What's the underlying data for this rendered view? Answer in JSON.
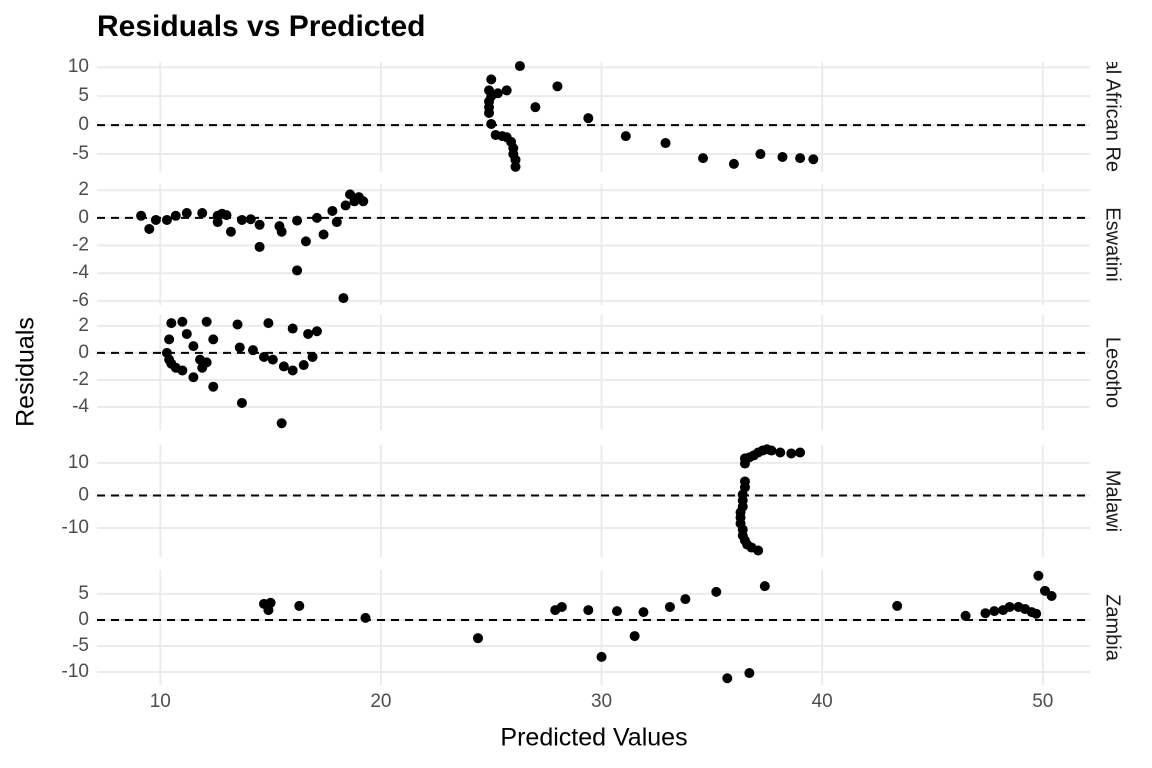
{
  "chart_data": {
    "type": "scatter",
    "title": "Residuals vs Predicted",
    "x_label": "Predicted Values",
    "y_label": "Residuals",
    "color": "#000000",
    "grid": true,
    "reference_line": 0,
    "xlim": [
      7.13,
      52.14
    ],
    "xticks": [
      10,
      20,
      30,
      40,
      50
    ],
    "facets": [
      {
        "name": "Central African Republic",
        "ylim": [
          -8.1,
          10.9
        ],
        "yticks": [
          -5,
          0,
          5,
          10
        ],
        "x": [
          25.0,
          26.3,
          24.9,
          25.0,
          25.3,
          25.7,
          24.9,
          24.9,
          24.9,
          25.0,
          25.2,
          25.5,
          25.7,
          25.9,
          26.0,
          26.0,
          26.1,
          26.1,
          27.0,
          28.0,
          29.4,
          31.1,
          32.9,
          34.6,
          36.0,
          37.2,
          38.2,
          39.0,
          39.6
        ],
        "y": [
          7.9,
          10.2,
          6.0,
          5.0,
          5.5,
          6.0,
          4.1,
          3.1,
          2.1,
          0.2,
          -1.7,
          -1.9,
          -2.1,
          -2.9,
          -4.0,
          -5.0,
          -6.0,
          -7.2,
          3.1,
          6.7,
          1.2,
          -1.9,
          -3.1,
          -5.7,
          -6.7,
          -5.0,
          -5.5,
          -5.7,
          -5.9
        ]
      },
      {
        "name": "Eswatini",
        "ylim": [
          -6.3,
          2.45
        ],
        "yticks": [
          -6,
          -4,
          -2,
          0,
          2
        ],
        "x": [
          9.13,
          9.5,
          9.8,
          10.3,
          10.7,
          11.2,
          11.9,
          12.6,
          12.6,
          12.8,
          13.0,
          13.2,
          13.7,
          14.1,
          14.5,
          14.5,
          15.4,
          15.5,
          16.2,
          16.2,
          16.6,
          17.1,
          17.4,
          17.8,
          18.0,
          18.3,
          18.4,
          18.6,
          18.8,
          19.0,
          19.2
        ],
        "y": [
          0.15,
          -0.8,
          -0.15,
          -0.15,
          0.15,
          0.35,
          0.35,
          0.15,
          -0.3,
          0.3,
          0.2,
          -1.0,
          -0.15,
          -0.1,
          -0.5,
          -2.1,
          -0.6,
          -1.0,
          -0.2,
          -3.8,
          -1.7,
          0.0,
          -1.2,
          0.5,
          -0.3,
          -5.8,
          0.9,
          1.7,
          1.2,
          1.5,
          1.2
        ]
      },
      {
        "name": "Lesotho",
        "ylim": [
          -5.7,
          2.8
        ],
        "yticks": [
          -4,
          -2,
          0,
          2
        ],
        "x": [
          10.3,
          10.4,
          10.5,
          10.4,
          10.5,
          10.7,
          11.0,
          11.0,
          11.2,
          11.5,
          11.5,
          11.8,
          11.9,
          12.1,
          12.1,
          12.4,
          12.4,
          13.5,
          13.6,
          13.7,
          14.2,
          14.7,
          14.9,
          15.1,
          15.6,
          15.5,
          16.0,
          16.0,
          16.5,
          16.7,
          17.1,
          16.9
        ],
        "y": [
          0.0,
          1.0,
          2.2,
          -0.5,
          -0.8,
          -1.1,
          -1.3,
          2.3,
          1.4,
          0.5,
          -1.8,
          -0.5,
          -1.1,
          2.3,
          -0.7,
          1.0,
          -2.5,
          2.1,
          0.4,
          -3.7,
          0.2,
          -0.3,
          2.2,
          -0.5,
          -1.0,
          -5.2,
          -1.3,
          1.8,
          -0.9,
          1.4,
          1.6,
          -0.3
        ]
      },
      {
        "name": "Malawi",
        "ylim": [
          -18.9,
          15.5
        ],
        "yticks": [
          -10,
          0,
          10
        ],
        "x": [
          37.1,
          36.8,
          36.6,
          36.5,
          36.4,
          36.4,
          36.3,
          36.3,
          36.3,
          36.4,
          36.4,
          36.4,
          36.5,
          36.5,
          36.5,
          36.5,
          36.7,
          36.9,
          37.1,
          37.3,
          37.5,
          37.7,
          38.1,
          38.6,
          39.0
        ],
        "y": [
          -16.9,
          -16.0,
          -15.1,
          -13.8,
          -12.3,
          -10.5,
          -8.6,
          -6.8,
          -5.2,
          -3.4,
          -1.5,
          0.3,
          2.5,
          4.3,
          9.8,
          11.4,
          11.7,
          12.3,
          13.2,
          13.8,
          14.2,
          13.8,
          13.2,
          12.9,
          13.2
        ]
      },
      {
        "name": "Zambia",
        "ylim": [
          -12.5,
          9.6
        ],
        "yticks": [
          -10,
          -5,
          0,
          5
        ],
        "x": [
          14.7,
          15.0,
          14.9,
          16.3,
          19.3,
          24.4,
          27.9,
          28.2,
          29.4,
          30.0,
          30.7,
          31.5,
          31.9,
          33.1,
          33.8,
          35.2,
          35.7,
          36.7,
          37.4,
          43.4,
          46.5,
          47.4,
          47.8,
          48.2,
          48.5,
          48.9,
          49.2,
          49.5,
          49.7,
          49.8,
          50.1,
          50.4
        ],
        "y": [
          3.1,
          3.3,
          1.9,
          2.7,
          0.4,
          -3.5,
          1.9,
          2.5,
          1.9,
          -7.1,
          1.7,
          -3.1,
          1.5,
          2.5,
          4.0,
          5.4,
          -11.2,
          -10.2,
          6.5,
          2.7,
          0.8,
          1.3,
          1.7,
          1.9,
          2.5,
          2.5,
          2.1,
          1.5,
          1.2,
          8.5,
          5.6,
          4.6
        ]
      }
    ]
  }
}
